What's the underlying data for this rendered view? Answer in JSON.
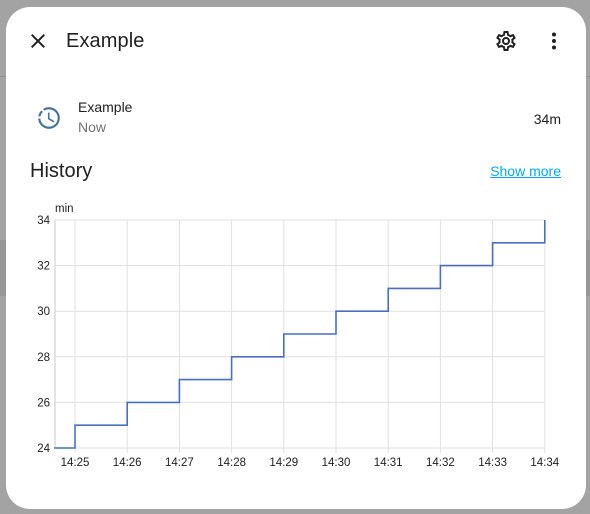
{
  "dialog": {
    "title": "Example",
    "close_icon": "close-icon",
    "settings_icon": "gear-icon",
    "more_icon": "more-vertical-icon"
  },
  "state": {
    "icon": "timer-clock-icon",
    "name": "Example",
    "time": "Now",
    "value": "34m"
  },
  "history": {
    "title": "History",
    "show_more": "Show more"
  },
  "colors": {
    "line": "#4a6fc1",
    "accent": "#03a9f4",
    "icon": "#44739e"
  },
  "chart_data": {
    "type": "line",
    "step": true,
    "ylabel": "min",
    "ylim": [
      24,
      34
    ],
    "yticks": [
      24,
      26,
      28,
      30,
      32,
      34
    ],
    "xticks": [
      "14:25",
      "14:26",
      "14:27",
      "14:28",
      "14:29",
      "14:30",
      "14:31",
      "14:32",
      "14:33",
      "14:34"
    ],
    "grid": true,
    "series": [
      {
        "x": [
          "14:24.6",
          "14:25",
          "14:26",
          "14:27",
          "14:28",
          "14:29",
          "14:30",
          "14:31",
          "14:32",
          "14:33",
          "14:34"
        ],
        "values": [
          24,
          25,
          26,
          27,
          28,
          29,
          30,
          31,
          32,
          33,
          34
        ]
      }
    ]
  }
}
